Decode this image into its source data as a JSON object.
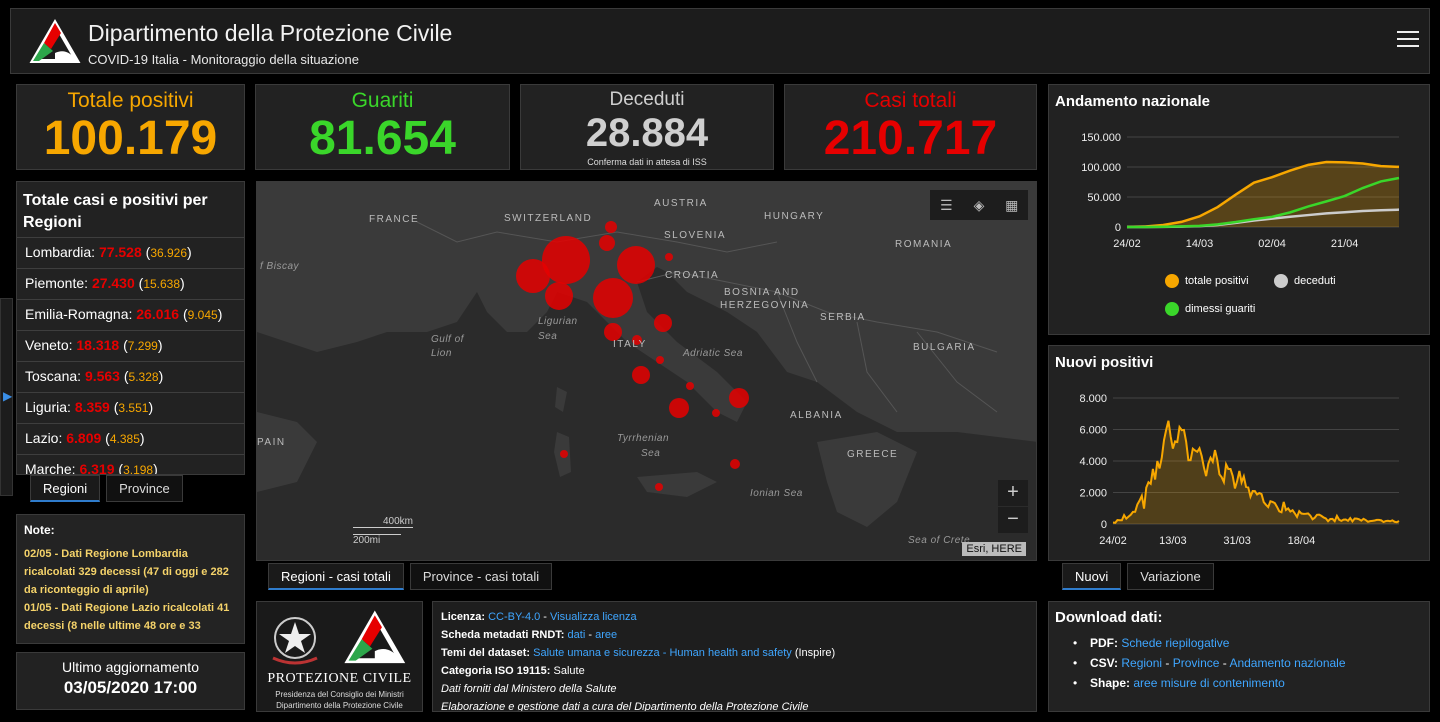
{
  "header": {
    "title": "Dipartimento della Protezione Civile",
    "subtitle": "COVID-19 Italia - Monitoraggio della situazione",
    "menu_icon": "hamburger-menu-icon"
  },
  "stats": {
    "positivi": {
      "label": "Totale positivi",
      "value": "100.179",
      "color": "#f7a700"
    },
    "guariti": {
      "label": "Guariti",
      "value": "81.654",
      "color": "#3ad62a"
    },
    "deceduti": {
      "label": "Deceduti",
      "value": "28.884",
      "note": "Conferma dati in attesa di ISS",
      "color": "#cfcfcf"
    },
    "casi": {
      "label": "Casi totali",
      "value": "210.717",
      "color": "#e60000"
    }
  },
  "regions_panel": {
    "title": "Totale casi e positivi per Regioni",
    "rows": [
      {
        "name": "Lombardia:",
        "total": "77.528",
        "positive": "36.926"
      },
      {
        "name": "Piemonte:",
        "total": "27.430",
        "positive": "15.638"
      },
      {
        "name": "Emilia-Romagna:",
        "total": "26.016",
        "positive": "9.045"
      },
      {
        "name": "Veneto:",
        "total": "18.318",
        "positive": "7.299"
      },
      {
        "name": "Toscana:",
        "total": "9.563",
        "positive": "5.328"
      },
      {
        "name": "Liguria:",
        "total": "8.359",
        "positive": "3.551"
      },
      {
        "name": "Lazio:",
        "total": "6.809",
        "positive": "4.385"
      },
      {
        "name": "Marche:",
        "total": "6.319",
        "positive": "3.198"
      }
    ],
    "tabs": [
      "Regioni",
      "Province"
    ]
  },
  "notes": {
    "title": "Note:",
    "items": [
      "02/05 - Dati Regione Lombardia ricalcolati 329 decessi (47 di oggi e 282 da riconteggio di aprile)",
      "01/05 - Dati Regione Lazio ricalcolati 41 decessi (8 nelle ultime 48 ore e 33"
    ]
  },
  "update": {
    "label": "Ultimo aggiornamento",
    "value": "03/05/2020 17:00"
  },
  "map": {
    "labels": [
      "FRANCE",
      "SWITZERLAND",
      "AUSTRIA",
      "HUNGARY",
      "SLOVENIA",
      "ROMANIA",
      "CROATIA",
      "BOSNIA AND",
      "HERZEGOVINA",
      "SERBIA",
      "ITALY",
      "BULGARIA",
      "ALBANIA",
      "GREECE",
      "PAIN"
    ],
    "sea_labels": [
      "f Biscay",
      "Ligurian",
      "Sea",
      "Gulf of",
      "Lion",
      "Adriatic Sea",
      "Tyrrhenian",
      "Sea",
      "Ionian Sea",
      "Sea of Crete"
    ],
    "scale_km": "400km",
    "scale_mi": "200mi",
    "attribution": "Esri, HERE",
    "tabs": [
      "Regioni - casi totali",
      "Province - casi totali"
    ]
  },
  "info": {
    "licenza_label": "Licenza:",
    "licenza_link": "CC-BY-4.0",
    "licenza_sep": " - ",
    "licenza_view": "Visualizza licenza",
    "scheda_label": "Scheda metadati RNDT:",
    "scheda_dati": "dati",
    "scheda_sep": " - ",
    "scheda_aree": "aree",
    "temi_label": "Temi del dataset:",
    "temi_link": "Salute umana e sicurezza - Human health and safety",
    "temi_suffix": " (Inspire)",
    "categoria_label": "Categoria ISO 19115:",
    "categoria_value": " Salute",
    "fonte": "Dati forniti dal Ministero della Salute",
    "elaborazione": "Elaborazione e gestione dati a cura del Dipartimento della Protezione Civile"
  },
  "logos": {
    "caption": "PROTEZIONE CIVILE",
    "line1": "Presidenza del Consiglio dei Ministri",
    "line2": "Dipartimento della Protezione Civile"
  },
  "trend_chart": {
    "title": "Andamento nazionale",
    "legend": [
      "totale positivi",
      "deceduti",
      "dimessi guariti"
    ],
    "tabs": []
  },
  "newpos_chart": {
    "title": "Nuovi positivi",
    "tabs": [
      "Nuovi",
      "Variazione"
    ]
  },
  "download": {
    "title": "Download dati:",
    "pdf_label": "PDF:",
    "pdf_link": "Schede riepilogative",
    "csv_label": "CSV:",
    "csv_link1": "Regioni",
    "csv_link2": "Province",
    "csv_link3": "Andamento nazionale",
    "csv_sep": " - ",
    "shape_label": "Shape:",
    "shape_link": "aree misure di contenimento"
  },
  "chart_data": [
    {
      "type": "line",
      "title": "Andamento nazionale",
      "x_ticks": [
        "24/02",
        "14/03",
        "02/04",
        "21/04"
      ],
      "y_ticks": [
        "0",
        "50.000",
        "100.000",
        "150.000"
      ],
      "ylim": [
        0,
        150000
      ],
      "x": [
        "24/02",
        "29/02",
        "05/03",
        "10/03",
        "14/03",
        "19/03",
        "24/03",
        "29/03",
        "02/04",
        "07/04",
        "12/04",
        "17/04",
        "21/04",
        "26/04",
        "30/04",
        "03/05"
      ],
      "series": [
        {
          "name": "totale positivi",
          "color": "#f7a700",
          "values": [
            221,
            888,
            3296,
            8514,
            17750,
            33190,
            54030,
            73880,
            83049,
            94067,
            103616,
            108257,
            107709,
            105847,
            101551,
            100179
          ]
        },
        {
          "name": "deceduti",
          "color": "#cccccc",
          "values": [
            7,
            29,
            148,
            631,
            1441,
            3405,
            6820,
            10779,
            13915,
            17127,
            19899,
            22745,
            24648,
            26644,
            27967,
            28884
          ]
        },
        {
          "name": "dimessi guariti",
          "color": "#3ad62a",
          "values": [
            1,
            46,
            414,
            1004,
            1966,
            4440,
            8326,
            13030,
            16847,
            24392,
            34211,
            42727,
            51600,
            64928,
            75945,
            81654
          ]
        }
      ]
    },
    {
      "type": "area",
      "title": "Nuovi positivi",
      "x_ticks": [
        "24/02",
        "13/03",
        "31/03",
        "18/04"
      ],
      "y_ticks": [
        "0",
        "2.000",
        "4.000",
        "6.000",
        "8.000"
      ],
      "ylim": [
        0,
        8000
      ],
      "color": "#f7a700",
      "values": [
        93,
        78,
        250,
        238,
        240,
        566,
        342,
        466,
        587,
        769,
        778,
        1247,
        1492,
        1797,
        977,
        2313,
        2651,
        2547,
        3497,
        2823,
        4000,
        3526,
        4207,
        5322,
        5986,
        6557,
        5560,
        4789,
        5249,
        5210,
        6153,
        5959,
        5974,
        5217,
        4050,
        4053,
        4782,
        4668,
        4585,
        4805,
        4316,
        3599,
        3039,
        3836,
        4204,
        3951,
        4694,
        4092,
        3153,
        2972,
        2667,
        3786,
        3493,
        3491,
        3047,
        2256,
        2729,
        3370,
        2646,
        3021,
        2357,
        2324,
        1739,
        2091,
        2086,
        1872,
        1965,
        1900,
        1389,
        1221,
        1075,
        1444,
        1401,
        1327,
        1083,
        802,
        744,
        1402,
        888,
        992,
        789,
        875,
        675,
        451,
        813,
        665,
        642,
        652,
        669,
        531,
        300,
        397,
        584,
        593,
        516,
        416,
        355,
        178,
        318,
        321,
        177,
        518,
        270,
        197,
        280,
        283,
        202,
        379,
        163,
        346,
        338,
        301,
        210,
        328,
        250,
        142,
        182,
        201,
        223,
        259,
        259,
        233,
        126,
        187,
        208,
        175,
        233,
        143,
        114,
        192
      ]
    }
  ]
}
